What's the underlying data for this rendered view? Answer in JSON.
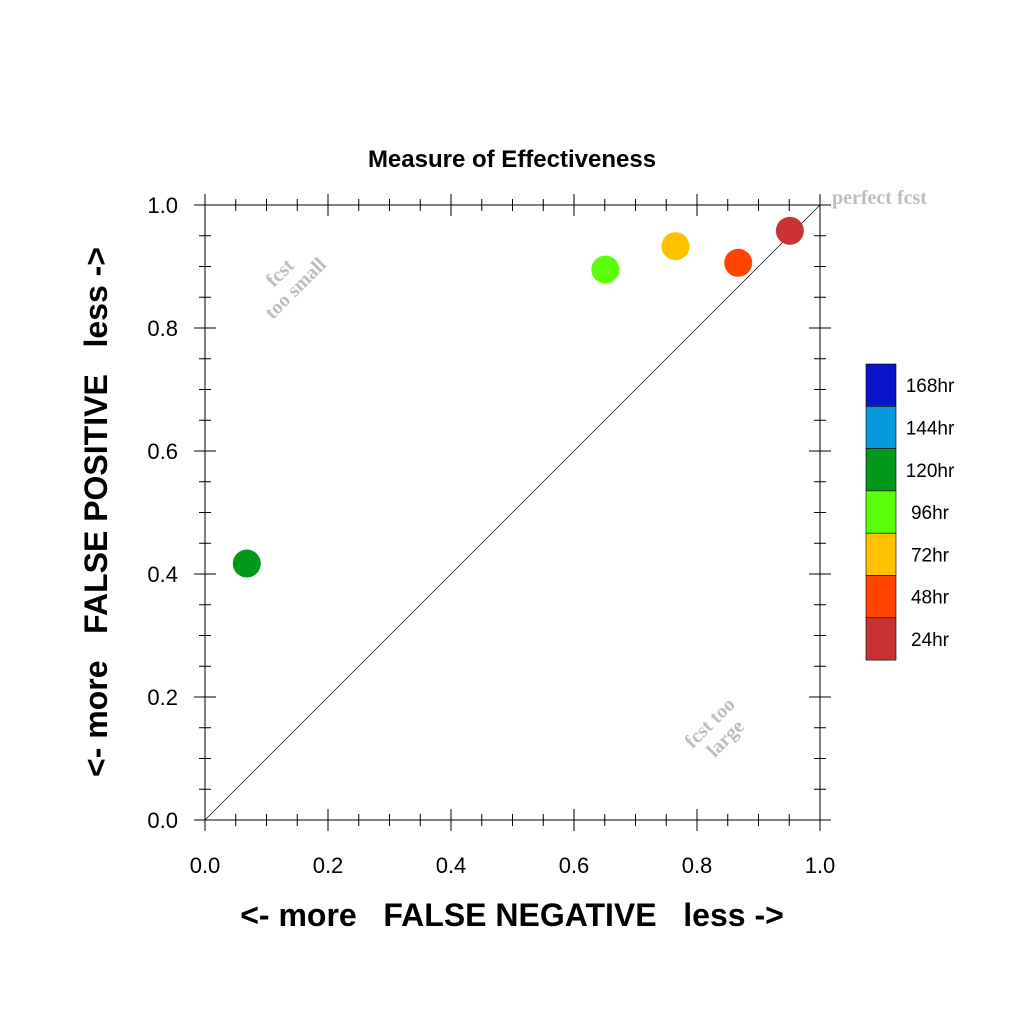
{
  "chart_data": {
    "type": "scatter",
    "title": "Measure of Effectiveness",
    "xlabel": "<- more   FALSE NEGATIVE   less ->",
    "ylabel": "<- more   FALSE POSITIVE   less ->",
    "xlim": [
      0.0,
      1.0
    ],
    "ylim": [
      0.0,
      1.0
    ],
    "xticks": [
      "0.0",
      "0.2",
      "0.4",
      "0.6",
      "0.8",
      "1.0"
    ],
    "yticks": [
      "0.0",
      "0.2",
      "0.4",
      "0.6",
      "0.8",
      "1.0"
    ],
    "xtick_values": [
      0,
      0.2,
      0.4,
      0.6,
      0.8,
      1.0
    ],
    "ytick_values": [
      0,
      0.2,
      0.4,
      0.6,
      0.8,
      1.0
    ],
    "grid": false,
    "diagonal_line": true,
    "annotations": {
      "perfect": "perfect fcst",
      "small_line1": "fcst",
      "small_line2": "too small",
      "large_line1": "fcst too",
      "large_line2": "large"
    },
    "legend_position": "right",
    "legend": [
      {
        "label": "168hr",
        "color": "#0a14c8"
      },
      {
        "label": "144hr",
        "color": "#0898dc"
      },
      {
        "label": "120hr",
        "color": "#00991a"
      },
      {
        "label": "96hr",
        "color": "#5cff0a"
      },
      {
        "label": "72hr",
        "color": "#ffc000"
      },
      {
        "label": "48hr",
        "color": "#ff4400"
      },
      {
        "label": "24hr",
        "color": "#c83232"
      }
    ],
    "series": [
      {
        "name": "24hr",
        "color": "#c83232",
        "x": 0.951,
        "y": 0.958
      },
      {
        "name": "48hr",
        "color": "#ff4400",
        "x": 0.867,
        "y": 0.906
      },
      {
        "name": "72hr",
        "color": "#ffc000",
        "x": 0.765,
        "y": 0.933
      },
      {
        "name": "96hr",
        "color": "#5cff0a",
        "x": 0.651,
        "y": 0.895
      },
      {
        "name": "120hr",
        "color": "#00991a",
        "x": 0.068,
        "y": 0.417
      }
    ]
  }
}
